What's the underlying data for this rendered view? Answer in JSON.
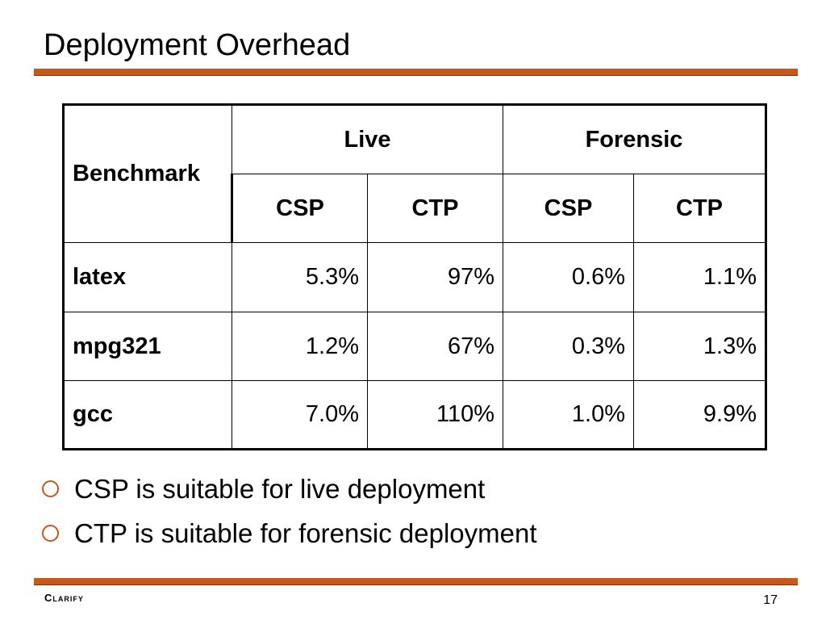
{
  "slide": {
    "title": "Deployment Overhead",
    "page_number": "17",
    "brand": "Clarify",
    "accent_color": "#c8571a"
  },
  "table": {
    "benchmark_header": "Benchmark",
    "groups": [
      "Live",
      "Forensic"
    ],
    "subheaders": [
      "CSP",
      "CTP",
      "CSP",
      "CTP"
    ],
    "rows": [
      {
        "name": "latex",
        "values": [
          "5.3%",
          "97%",
          "0.6%",
          "1.1%"
        ]
      },
      {
        "name": "mpg321",
        "values": [
          "1.2%",
          "67%",
          "0.3%",
          "1.3%"
        ]
      },
      {
        "name": "gcc",
        "values": [
          "7.0%",
          "110%",
          "1.0%",
          "9.9%"
        ]
      }
    ]
  },
  "bullets": [
    "CSP is suitable for live deployment",
    "CTP is suitable for forensic deployment"
  ]
}
